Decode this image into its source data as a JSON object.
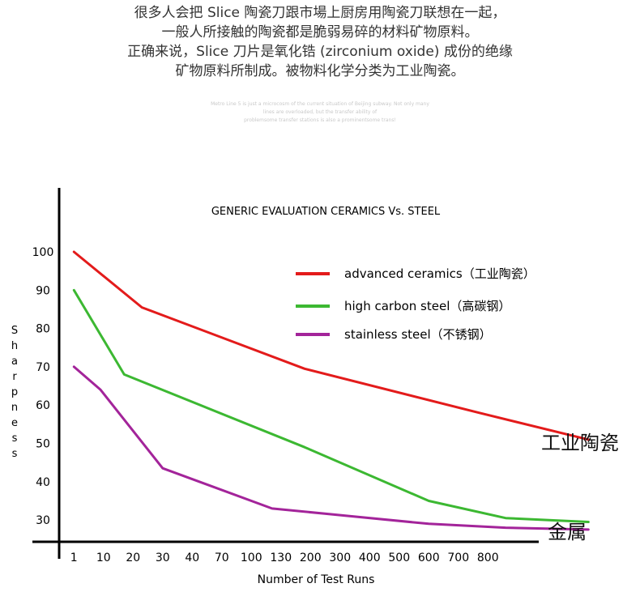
{
  "intro": {
    "lines": [
      "很多人会把 Slice 陶瓷刀跟市場上厨房用陶瓷刀联想在一起，",
      "一般人所接触的陶瓷都是脆弱易碎的材料矿物原料。",
      "正确来说，Slice 刀片是氧化锆 (zirconium oxide) 成份的绝缘",
      "矿物原料所制成。被物料化学分类为工业陶瓷。"
    ]
  },
  "caption": {
    "lines": [
      "Metro Line 5 is just a microcosm of the current situation of Beijing subway. Not only many",
      "lines are overloaded, but the transfer ability of",
      "problemsome transfer stations is also a prominentsome trans!"
    ]
  },
  "chart_data": {
    "type": "line",
    "title": "GENERIC EVALUATION CERAMICS Vs. STEEL",
    "xlabel": "Number of Test Runs",
    "ylabel": "Sharpness",
    "x": [
      "1",
      "10",
      "20",
      "30",
      "40",
      "70",
      "100",
      "130",
      "200",
      "300",
      "400",
      "500",
      "600",
      "700",
      "800"
    ],
    "yticks": [
      30,
      40,
      50,
      60,
      70,
      80,
      90,
      100
    ],
    "ylim": [
      26,
      108
    ],
    "grid": false,
    "legend_position": "top-right",
    "series": [
      {
        "name": "advanced ceramics（工业陶瓷）",
        "color": "#e31b1b",
        "points": [
          [
            0.5,
            100
          ],
          [
            2.8,
            85.5
          ],
          [
            8.3,
            69.5
          ],
          [
            14.2,
            58
          ],
          [
            17.9,
            51
          ]
        ]
      },
      {
        "name": "high carbon steel（高碳钢）",
        "color": "#3cb832",
        "points": [
          [
            0.5,
            90
          ],
          [
            2.2,
            68
          ],
          [
            8.3,
            49
          ],
          [
            12.5,
            35
          ],
          [
            15.1,
            30.5
          ],
          [
            17.9,
            29.5
          ]
        ]
      },
      {
        "name": "stainless steel（不锈钢）",
        "color": "#a3249a",
        "points": [
          [
            0.5,
            70
          ],
          [
            1.4,
            64
          ],
          [
            3.5,
            43.5
          ],
          [
            7.2,
            33
          ],
          [
            12.5,
            29
          ],
          [
            15.1,
            28
          ],
          [
            17.9,
            27.5
          ]
        ]
      }
    ],
    "annotations": [
      {
        "text": "工业陶瓷",
        "series": 0
      },
      {
        "text": "金属",
        "series": 2
      }
    ]
  }
}
